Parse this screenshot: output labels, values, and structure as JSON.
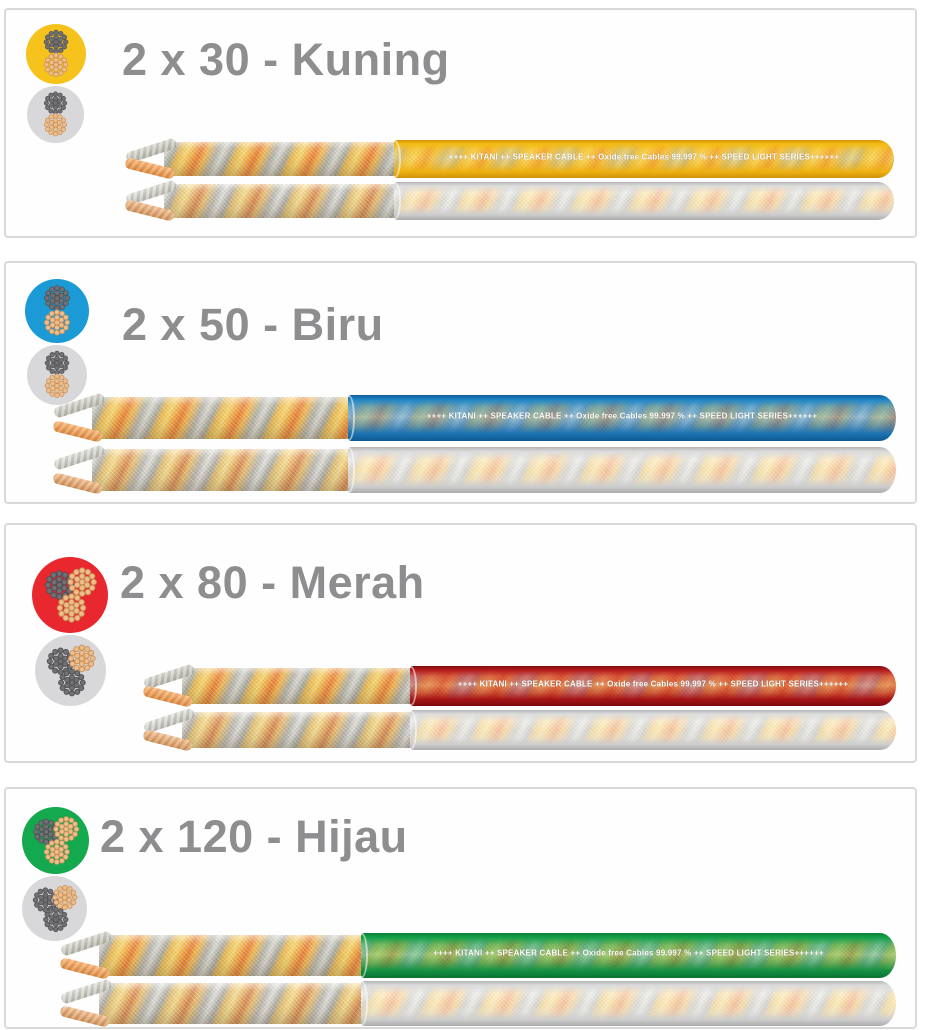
{
  "page": {
    "background": "#ffffff",
    "panel_border": "#d9d9da",
    "title_color": "#8e8e90"
  },
  "jacket_text": "++++ KITANI ++ SPEAKER CABLE ++ Oxide free Cables 99.997 % ++ SPEED LIGHT SERIES++++++",
  "strand_colors": {
    "copper": "#edbd8c",
    "gray": "#717174"
  },
  "products": [
    {
      "title": "2 x 30 - Kuning",
      "size": "2 x 30",
      "color_name": "Kuning",
      "jacket_color": "#f6c31c",
      "cross_sections": [
        {
          "bg": "#f6c31c",
          "bundles": [
            "gray",
            "copper"
          ]
        },
        {
          "bg": "#d8d8da",
          "bundles": [
            "gray",
            "copper"
          ]
        }
      ]
    },
    {
      "title": "2 x 50 - Biru",
      "size": "2 x 50",
      "color_name": "Biru",
      "jacket_color": "#1b9ad6",
      "cross_sections": [
        {
          "bg": "#1b9ad6",
          "bundles": [
            "gray",
            "copper"
          ]
        },
        {
          "bg": "#d8d8da",
          "bundles": [
            "gray",
            "copper"
          ]
        }
      ]
    },
    {
      "title": "2 x 80 - Merah",
      "size": "2 x 80",
      "color_name": "Merah",
      "jacket_color": "#e8272e",
      "cross_sections": [
        {
          "bg": "#e8272e",
          "bundles": [
            "gray",
            "copper",
            "copper"
          ]
        },
        {
          "bg": "#d8d8da",
          "bundles": [
            "gray",
            "copper",
            "gray"
          ]
        }
      ]
    },
    {
      "title": "2 x 120 - Hijau",
      "size": "2 x 120",
      "color_name": "Hijau",
      "jacket_color": "#14a94e",
      "cross_sections": [
        {
          "bg": "#14a94e",
          "bundles": [
            "gray",
            "copper",
            "copper"
          ]
        },
        {
          "bg": "#d8d8da",
          "bundles": [
            "gray",
            "copper",
            "gray"
          ]
        }
      ]
    }
  ]
}
